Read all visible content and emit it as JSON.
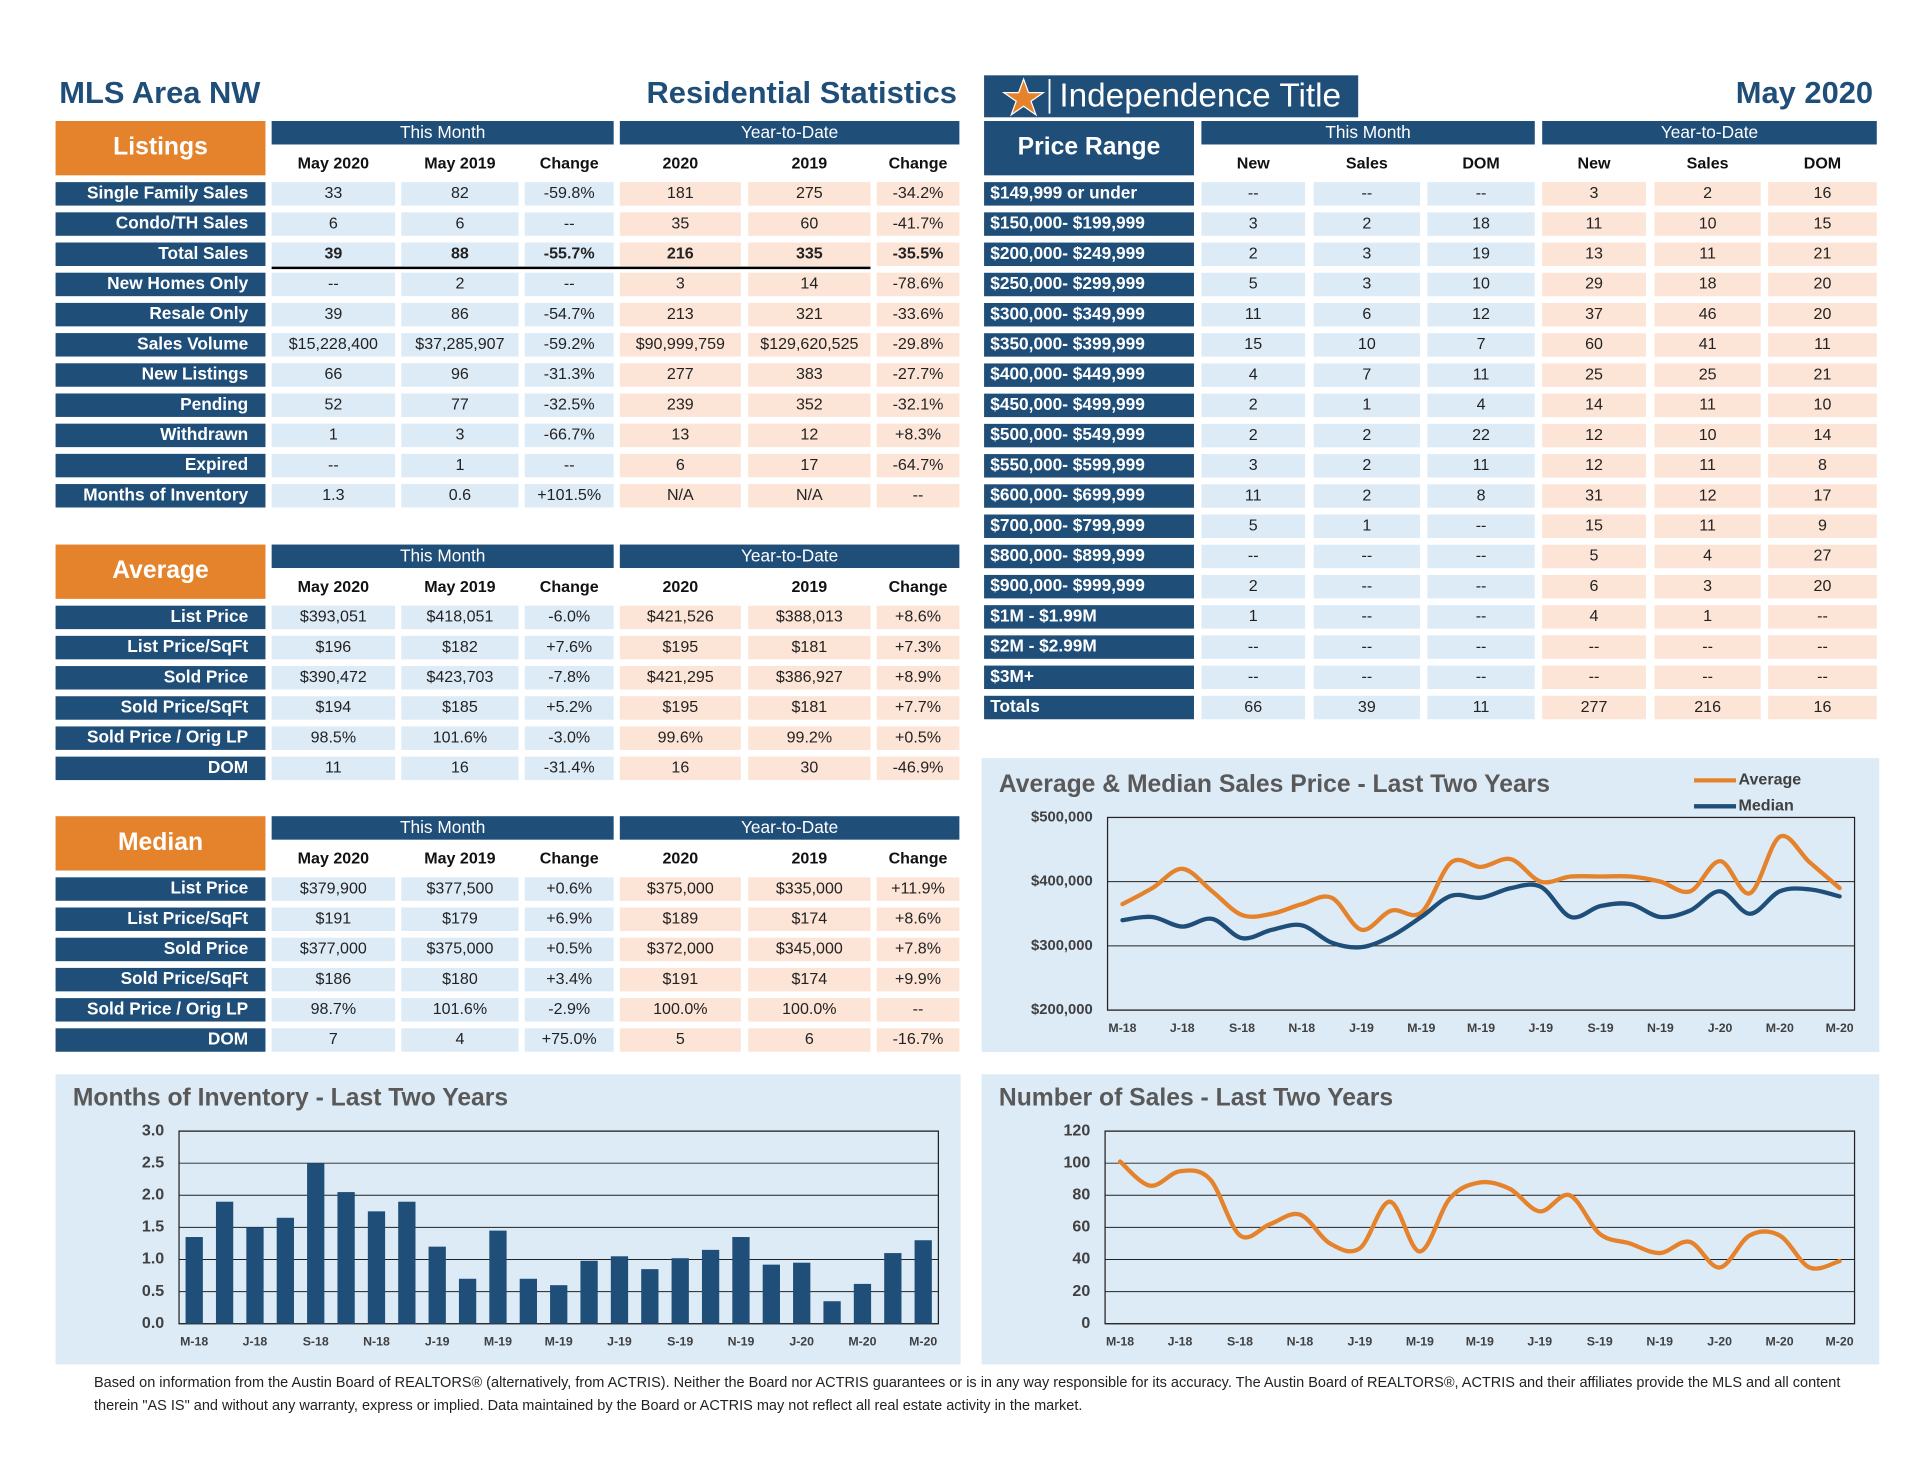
{
  "header": {
    "area": "MLS Area NW",
    "title": "Residential Statistics",
    "brand": "Independence Title",
    "date": "May 2020"
  },
  "tables": {
    "listings": {
      "title": "Listings",
      "groups": [
        "This Month",
        "Year-to-Date"
      ],
      "columns": [
        "May 2020",
        "May 2019",
        "Change",
        "2020",
        "2019",
        "Change"
      ],
      "rows": [
        {
          "label": "Single Family Sales",
          "cells": [
            "33",
            "82",
            "-59.8%",
            "181",
            "275",
            "-34.2%"
          ]
        },
        {
          "label": "Condo/TH Sales",
          "cells": [
            "6",
            "6",
            "--",
            "35",
            "60",
            "-41.7%"
          ]
        },
        {
          "label": "Total Sales",
          "cells": [
            "39",
            "88",
            "-55.7%",
            "216",
            "335",
            "-35.5%"
          ]
        },
        {
          "label": "New Homes Only",
          "cells": [
            "--",
            "2",
            "--",
            "3",
            "14",
            "-78.6%"
          ]
        },
        {
          "label": "Resale Only",
          "cells": [
            "39",
            "86",
            "-54.7%",
            "213",
            "321",
            "-33.6%"
          ]
        },
        {
          "label": "Sales Volume",
          "cells": [
            "$15,228,400",
            "$37,285,907",
            "-59.2%",
            "$90,999,759",
            "$129,620,525",
            "-29.8%"
          ]
        },
        {
          "label": "New Listings",
          "cells": [
            "66",
            "96",
            "-31.3%",
            "277",
            "383",
            "-27.7%"
          ]
        },
        {
          "label": "Pending",
          "cells": [
            "52",
            "77",
            "-32.5%",
            "239",
            "352",
            "-32.1%"
          ]
        },
        {
          "label": "Withdrawn",
          "cells": [
            "1",
            "3",
            "-66.7%",
            "13",
            "12",
            "+8.3%"
          ]
        },
        {
          "label": "Expired",
          "cells": [
            "--",
            "1",
            "--",
            "6",
            "17",
            "-64.7%"
          ]
        },
        {
          "label": "Months of Inventory",
          "cells": [
            "1.3",
            "0.6",
            "+101.5%",
            "N/A",
            "N/A",
            "--"
          ]
        }
      ]
    },
    "average": {
      "title": "Average",
      "groups": [
        "This Month",
        "Year-to-Date"
      ],
      "columns": [
        "May 2020",
        "May 2019",
        "Change",
        "2020",
        "2019",
        "Change"
      ],
      "rows": [
        {
          "label": "List Price",
          "cells": [
            "$393,051",
            "$418,051",
            "-6.0%",
            "$421,526",
            "$388,013",
            "+8.6%"
          ]
        },
        {
          "label": "List Price/SqFt",
          "cells": [
            "$196",
            "$182",
            "+7.6%",
            "$195",
            "$181",
            "+7.3%"
          ]
        },
        {
          "label": "Sold Price",
          "cells": [
            "$390,472",
            "$423,703",
            "-7.8%",
            "$421,295",
            "$386,927",
            "+8.9%"
          ]
        },
        {
          "label": "Sold Price/SqFt",
          "cells": [
            "$194",
            "$185",
            "+5.2%",
            "$195",
            "$181",
            "+7.7%"
          ]
        },
        {
          "label": "Sold Price / Orig LP",
          "cells": [
            "98.5%",
            "101.6%",
            "-3.0%",
            "99.6%",
            "99.2%",
            "+0.5%"
          ]
        },
        {
          "label": "DOM",
          "cells": [
            "11",
            "16",
            "-31.4%",
            "16",
            "30",
            "-46.9%"
          ]
        }
      ]
    },
    "median": {
      "title": "Median",
      "groups": [
        "This Month",
        "Year-to-Date"
      ],
      "columns": [
        "May 2020",
        "May 2019",
        "Change",
        "2020",
        "2019",
        "Change"
      ],
      "rows": [
        {
          "label": "List Price",
          "cells": [
            "$379,900",
            "$377,500",
            "+0.6%",
            "$375,000",
            "$335,000",
            "+11.9%"
          ]
        },
        {
          "label": "List Price/SqFt",
          "cells": [
            "$191",
            "$179",
            "+6.9%",
            "$189",
            "$174",
            "+8.6%"
          ]
        },
        {
          "label": "Sold Price",
          "cells": [
            "$377,000",
            "$375,000",
            "+0.5%",
            "$372,000",
            "$345,000",
            "+7.8%"
          ]
        },
        {
          "label": "Sold Price/SqFt",
          "cells": [
            "$186",
            "$180",
            "+3.4%",
            "$191",
            "$174",
            "+9.9%"
          ]
        },
        {
          "label": "Sold Price / Orig LP",
          "cells": [
            "98.7%",
            "101.6%",
            "-2.9%",
            "100.0%",
            "100.0%",
            "--"
          ]
        },
        {
          "label": "DOM",
          "cells": [
            "7",
            "4",
            "+75.0%",
            "5",
            "6",
            "-16.7%"
          ]
        }
      ]
    },
    "price_range": {
      "title": "Price Range",
      "groups": [
        "This Month",
        "Year-to-Date"
      ],
      "columns": [
        "New",
        "Sales",
        "DOM",
        "New",
        "Sales",
        "DOM"
      ],
      "rows": [
        {
          "label": "$149,999 or under",
          "cells": [
            "--",
            "--",
            "--",
            "3",
            "2",
            "16"
          ]
        },
        {
          "label": "$150,000- $199,999",
          "cells": [
            "3",
            "2",
            "18",
            "11",
            "10",
            "15"
          ]
        },
        {
          "label": "$200,000- $249,999",
          "cells": [
            "2",
            "3",
            "19",
            "13",
            "11",
            "21"
          ]
        },
        {
          "label": "$250,000- $299,999",
          "cells": [
            "5",
            "3",
            "10",
            "29",
            "18",
            "20"
          ]
        },
        {
          "label": "$300,000- $349,999",
          "cells": [
            "11",
            "6",
            "12",
            "37",
            "46",
            "20"
          ]
        },
        {
          "label": "$350,000- $399,999",
          "cells": [
            "15",
            "10",
            "7",
            "60",
            "41",
            "11"
          ]
        },
        {
          "label": "$400,000- $449,999",
          "cells": [
            "4",
            "7",
            "11",
            "25",
            "25",
            "21"
          ]
        },
        {
          "label": "$450,000- $499,999",
          "cells": [
            "2",
            "1",
            "4",
            "14",
            "11",
            "10"
          ]
        },
        {
          "label": "$500,000- $549,999",
          "cells": [
            "2",
            "2",
            "22",
            "12",
            "10",
            "14"
          ]
        },
        {
          "label": "$550,000- $599,999",
          "cells": [
            "3",
            "2",
            "11",
            "12",
            "11",
            "8"
          ]
        },
        {
          "label": "$600,000- $699,999",
          "cells": [
            "11",
            "2",
            "8",
            "31",
            "12",
            "17"
          ]
        },
        {
          "label": "$700,000- $799,999",
          "cells": [
            "5",
            "1",
            "--",
            "15",
            "11",
            "9"
          ]
        },
        {
          "label": "$800,000- $899,999",
          "cells": [
            "--",
            "--",
            "--",
            "5",
            "4",
            "27"
          ]
        },
        {
          "label": "$900,000- $999,999",
          "cells": [
            "2",
            "--",
            "--",
            "6",
            "3",
            "20"
          ]
        },
        {
          "label": "$1M - $1.99M",
          "cells": [
            "1",
            "--",
            "--",
            "4",
            "1",
            "--"
          ]
        },
        {
          "label": "$2M - $2.99M",
          "cells": [
            "--",
            "--",
            "--",
            "--",
            "--",
            "--"
          ]
        },
        {
          "label": "$3M+",
          "cells": [
            "--",
            "--",
            "--",
            "--",
            "--",
            "--"
          ]
        },
        {
          "label": "Totals",
          "cells": [
            "66",
            "39",
            "11",
            "277",
            "216",
            "16"
          ]
        }
      ]
    }
  },
  "chart_data": [
    {
      "type": "line",
      "title": "Average & Median Sales Price - Last Two Years",
      "categories": [
        "M-18",
        null,
        "J-18",
        null,
        "S-18",
        null,
        "N-18",
        null,
        "J-19",
        null,
        "M-19",
        null,
        "M-19",
        null,
        "J-19",
        null,
        "S-19",
        null,
        "N-19",
        null,
        "J-20",
        null,
        "M-20",
        null,
        "M-20"
      ],
      "series": [
        {
          "name": "Average",
          "color": "#e5832c",
          "values": [
            365000,
            390000,
            420000,
            385000,
            348000,
            350000,
            365000,
            375000,
            325000,
            355000,
            352000,
            430000,
            423000,
            435000,
            400000,
            408000,
            408000,
            408000,
            400000,
            385000,
            432000,
            382000,
            470000,
            430000,
            390000
          ]
        },
        {
          "name": "Median",
          "color": "#1f4e79",
          "values": [
            340000,
            345000,
            330000,
            342000,
            312000,
            325000,
            332000,
            305000,
            298000,
            315000,
            345000,
            378000,
            375000,
            390000,
            392000,
            345000,
            362000,
            365000,
            345000,
            355000,
            385000,
            350000,
            385000,
            388000,
            377000
          ]
        }
      ],
      "ylim": [
        200000,
        500000
      ],
      "yticks": [
        {
          "value": 200000,
          "label": "$200,000"
        },
        {
          "value": 300000,
          "label": "$300,000"
        },
        {
          "value": 400000,
          "label": "$400,000"
        },
        {
          "value": 500000,
          "label": "$500,000"
        }
      ],
      "grid": true,
      "legend": "top-right"
    },
    {
      "type": "bar",
      "title": "Months of Inventory - Last Two Years",
      "categories": [
        "M-18",
        null,
        "J-18",
        null,
        "S-18",
        null,
        "N-18",
        null,
        "J-19",
        null,
        "M-19",
        null,
        "M-19",
        null,
        "J-19",
        null,
        "S-19",
        null,
        "N-19",
        null,
        "J-20",
        null,
        "M-20",
        null,
        "M-20"
      ],
      "values": [
        1.35,
        1.9,
        1.5,
        1.65,
        2.5,
        2.05,
        1.75,
        1.9,
        1.2,
        0.7,
        1.45,
        0.7,
        0.6,
        0.98,
        1.05,
        0.85,
        1.02,
        1.15,
        1.35,
        0.92,
        0.95,
        0.35,
        0.62,
        1.1,
        1.3
      ],
      "color": "#1f4e79",
      "ylim": [
        0,
        3
      ],
      "yticks": [
        {
          "value": 0,
          "label": "0.0"
        },
        0.5,
        {
          "value": 1,
          "label": "1.0"
        },
        1.5,
        {
          "value": 2,
          "label": "2.0"
        },
        2.5,
        {
          "value": 3,
          "label": "3.0"
        }
      ],
      "grid": true
    },
    {
      "type": "line",
      "title": "Number of Sales - Last Two Years",
      "categories": [
        "M-18",
        null,
        "J-18",
        null,
        "S-18",
        null,
        "N-18",
        null,
        "J-19",
        null,
        "M-19",
        null,
        "M-19",
        null,
        "J-19",
        null,
        "S-19",
        null,
        "N-19",
        null,
        "J-20",
        null,
        "M-20",
        null,
        "M-20"
      ],
      "series": [
        {
          "color": "#e5832c",
          "values": [
            101,
            86,
            95,
            90,
            55,
            62,
            68,
            50,
            47,
            76,
            45,
            78,
            88,
            84,
            70,
            80,
            56,
            50,
            44,
            51,
            35,
            55,
            55,
            35,
            39
          ]
        }
      ],
      "ylim": [
        0,
        120
      ],
      "yticks": [
        0,
        20,
        40,
        60,
        80,
        100,
        120
      ],
      "grid": true
    }
  ],
  "footer": {
    "text": "Based on information from the Austin Board of REALTORS® (alternatively, from ACTRIS). Neither the Board nor ACTRIS guarantees or is in any way responsible for its accuracy. The Austin Board of REALTORS®, ACTRIS and their affiliates provide the MLS and all content therein \"AS IS\" and without any warranty, express or implied. Data maintained by the Board or ACTRIS may not reflect all real estate activity in the market."
  }
}
